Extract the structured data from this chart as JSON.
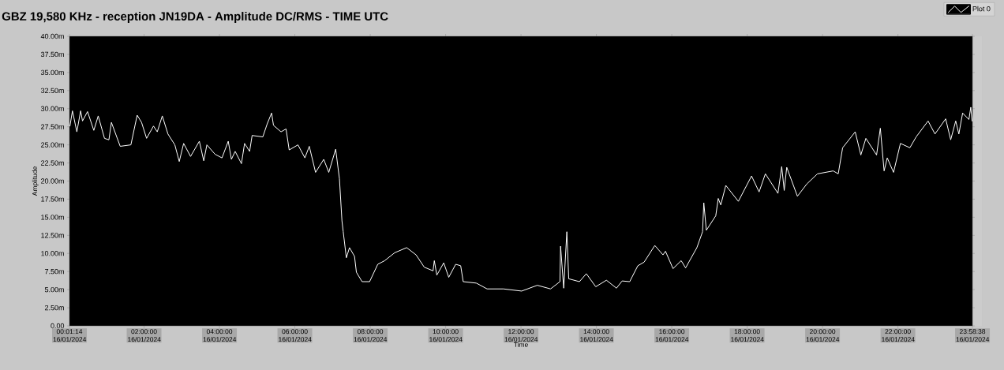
{
  "chart_data": {
    "type": "line",
    "title": "GBZ  19,580 KHz - reception JN19DA -  Amplitude DC/RMS   - TIME UTC",
    "xlabel": "Time",
    "ylabel": "Amplitude",
    "xlim": [
      "2024-01-16T00:01:14",
      "2024-01-16T23:58:38"
    ],
    "ylim": [
      0,
      40
    ],
    "xticks": [
      {
        "value": "2024-01-16T00:01:14",
        "label": "00:01:14 16/01/2024"
      },
      {
        "value": "2024-01-16T02:00:00",
        "label": "02:00:00 16/01/2024"
      },
      {
        "value": "2024-01-16T04:00:00",
        "label": "04:00:00 16/01/2024"
      },
      {
        "value": "2024-01-16T06:00:00",
        "label": "06:00:00 16/01/2024"
      },
      {
        "value": "2024-01-16T08:00:00",
        "label": "08:00:00 16/01/2024"
      },
      {
        "value": "2024-01-16T10:00:00",
        "label": "10:00:00 16/01/2024"
      },
      {
        "value": "2024-01-16T12:00:00",
        "label": "12:00:00 16/01/2024"
      },
      {
        "value": "2024-01-16T14:00:00",
        "label": "14:00:00 16/01/2024"
      },
      {
        "value": "2024-01-16T16:00:00",
        "label": "16:00:00 16/01/2024"
      },
      {
        "value": "2024-01-16T18:00:00",
        "label": "18:00:00 16/01/2024"
      },
      {
        "value": "2024-01-16T20:00:00",
        "label": "20:00:00 16/01/2024"
      },
      {
        "value": "2024-01-16T22:00:00",
        "label": "22:00:00 16/01/2024"
      },
      {
        "value": "2024-01-16T23:58:38",
        "label": "23:58:38 16/01/2024"
      }
    ],
    "yticks": [
      {
        "value": 0,
        "label": "0.00"
      },
      {
        "value": 2.5,
        "label": "2.50m"
      },
      {
        "value": 5,
        "label": "5.00m"
      },
      {
        "value": 7.5,
        "label": "7.50m"
      },
      {
        "value": 10,
        "label": "10.00m"
      },
      {
        "value": 12.5,
        "label": "12.50m"
      },
      {
        "value": 15,
        "label": "15.00m"
      },
      {
        "value": 17.5,
        "label": "17.50m"
      },
      {
        "value": 20,
        "label": "20.00m"
      },
      {
        "value": 22.5,
        "label": "22.50m"
      },
      {
        "value": 25,
        "label": "25.00m"
      },
      {
        "value": 27.5,
        "label": "27.50m"
      },
      {
        "value": 30,
        "label": "30.00m"
      },
      {
        "value": 32.5,
        "label": "32.50m"
      },
      {
        "value": 35,
        "label": "35.00m"
      },
      {
        "value": 37.5,
        "label": "37.50m"
      },
      {
        "value": 40,
        "label": "40.00m"
      }
    ],
    "legend": "top right",
    "series": [
      {
        "name": "Plot 0",
        "color": "#ffffff",
        "x": [
          "2024-01-16T00:02",
          "2024-01-16T00:06",
          "2024-01-16T00:13",
          "2024-01-16T00:19",
          "2024-01-16T00:22",
          "2024-01-16T00:30",
          "2024-01-16T00:40",
          "2024-01-16T00:47",
          "2024-01-16T00:57",
          "2024-01-16T01:04",
          "2024-01-16T01:08",
          "2024-01-16T01:22",
          "2024-01-16T01:39",
          "2024-01-16T01:49",
          "2024-01-16T01:56",
          "2024-01-16T02:04",
          "2024-01-16T02:15",
          "2024-01-16T02:21",
          "2024-01-16T02:29",
          "2024-01-16T02:38",
          "2024-01-16T02:49",
          "2024-01-16T02:56",
          "2024-01-16T03:03",
          "2024-01-16T03:14",
          "2024-01-16T03:28",
          "2024-01-16T03:35",
          "2024-01-16T03:40",
          "2024-01-16T03:53",
          "2024-01-16T04:04",
          "2024-01-16T04:14",
          "2024-01-16T04:19",
          "2024-01-16T04:25",
          "2024-01-16T04:35",
          "2024-01-16T04:40",
          "2024-01-16T04:48",
          "2024-01-16T04:52",
          "2024-01-16T05:09",
          "2024-01-16T05:16",
          "2024-01-16T05:23",
          "2024-01-16T05:26",
          "2024-01-16T05:38",
          "2024-01-16T05:46",
          "2024-01-16T05:51",
          "2024-01-16T06:05",
          "2024-01-16T06:16",
          "2024-01-16T06:23",
          "2024-01-16T06:33",
          "2024-01-16T06:46",
          "2024-01-16T06:54",
          "2024-01-16T07:05",
          "2024-01-16T07:11",
          "2024-01-16T07:15",
          "2024-01-16T07:17",
          "2024-01-16T07:22",
          "2024-01-16T07:27",
          "2024-01-16T07:35",
          "2024-01-16T07:38",
          "2024-01-16T07:47",
          "2024-01-16T07:59",
          "2024-01-16T08:12",
          "2024-01-16T08:23",
          "2024-01-16T08:39",
          "2024-01-16T08:58",
          "2024-01-16T09:13",
          "2024-01-16T09:26",
          "2024-01-16T09:40",
          "2024-01-16T09:42",
          "2024-01-16T09:46",
          "2024-01-16T09:57",
          "2024-01-16T10:05",
          "2024-01-16T10:16",
          "2024-01-16T10:24",
          "2024-01-16T10:28",
          "2024-01-16T10:49",
          "2024-01-16T11:06",
          "2024-01-16T11:32",
          "2024-01-16T12:01",
          "2024-01-16T12:26",
          "2024-01-16T12:47",
          "2024-01-16T13:02",
          "2024-01-16T13:03",
          "2024-01-16T13:08",
          "2024-01-16T13:13",
          "2024-01-16T13:16",
          "2024-01-16T13:33",
          "2024-01-16T13:44",
          "2024-01-16T13:59",
          "2024-01-16T14:16",
          "2024-01-16T14:32",
          "2024-01-16T14:41",
          "2024-01-16T14:53",
          "2024-01-16T15:06",
          "2024-01-16T15:16",
          "2024-01-16T15:33",
          "2024-01-16T15:46",
          "2024-01-16T15:50",
          "2024-01-16T16:02",
          "2024-01-16T16:15",
          "2024-01-16T16:22",
          "2024-01-16T16:40",
          "2024-01-16T16:49",
          "2024-01-16T16:51",
          "2024-01-16T16:55",
          "2024-01-16T17:10",
          "2024-01-16T17:14",
          "2024-01-16T17:18",
          "2024-01-16T17:26",
          "2024-01-16T17:46",
          "2024-01-16T18:07",
          "2024-01-16T18:19",
          "2024-01-16T18:29",
          "2024-01-16T18:49",
          "2024-01-16T18:55",
          "2024-01-16T18:59",
          "2024-01-16T19:03",
          "2024-01-16T19:20",
          "2024-01-16T19:35",
          "2024-01-16T19:52",
          "2024-01-16T20:17",
          "2024-01-16T20:25",
          "2024-01-16T20:32",
          "2024-01-16T20:52",
          "2024-01-16T21:01",
          "2024-01-16T21:09",
          "2024-01-16T21:26",
          "2024-01-16T21:32",
          "2024-01-16T21:38",
          "2024-01-16T21:43",
          "2024-01-16T21:53",
          "2024-01-16T22:04",
          "2024-01-16T22:19",
          "2024-01-16T22:29",
          "2024-01-16T22:48",
          "2024-01-16T22:59",
          "2024-01-16T23:16",
          "2024-01-16T23:24",
          "2024-01-16T23:32",
          "2024-01-16T23:37",
          "2024-01-16T23:43",
          "2024-01-16T23:53",
          "2024-01-16T23:56",
          "2024-01-16T23:58"
        ],
        "values": [
          27.6,
          29.7,
          26.8,
          29.7,
          28.3,
          29.6,
          27.0,
          29.0,
          25.9,
          25.7,
          28.1,
          24.8,
          25.0,
          29.1,
          28.1,
          25.9,
          27.6,
          26.8,
          29.0,
          26.5,
          25.0,
          22.7,
          25.2,
          23.4,
          25.5,
          22.8,
          25.0,
          23.7,
          23.2,
          25.5,
          23.0,
          24.1,
          22.4,
          25.2,
          24.1,
          26.3,
          26.1,
          27.9,
          29.4,
          27.7,
          26.8,
          27.2,
          24.3,
          25.0,
          23.2,
          24.8,
          21.2,
          23.0,
          21.2,
          24.4,
          20.3,
          14.5,
          13.0,
          9.4,
          10.8,
          9.6,
          7.4,
          6.1,
          6.1,
          8.5,
          9.0,
          10.1,
          10.8,
          9.8,
          8.1,
          7.6,
          9.0,
          7.0,
          8.7,
          6.7,
          8.5,
          8.3,
          6.1,
          5.9,
          5.1,
          5.1,
          4.8,
          5.6,
          5.1,
          6.1,
          11.0,
          5.2,
          13.0,
          6.5,
          6.1,
          7.2,
          5.4,
          6.3,
          5.2,
          6.2,
          6.1,
          8.3,
          8.8,
          11.1,
          9.8,
          10.3,
          7.9,
          9.0,
          8.0,
          10.8,
          13.0,
          17.0,
          13.2,
          15.2,
          17.6,
          16.7,
          19.4,
          17.2,
          20.7,
          18.5,
          21.0,
          18.3,
          22.0,
          18.7,
          21.9,
          17.9,
          19.6,
          21.0,
          21.4,
          21.0,
          24.6,
          26.8,
          23.6,
          25.9,
          23.6,
          27.3,
          21.4,
          23.2,
          21.2,
          25.2,
          24.6,
          26.1,
          28.3,
          26.5,
          28.6,
          25.7,
          28.3,
          26.5,
          29.4,
          28.5,
          30.2,
          28.3
        ]
      }
    ]
  }
}
